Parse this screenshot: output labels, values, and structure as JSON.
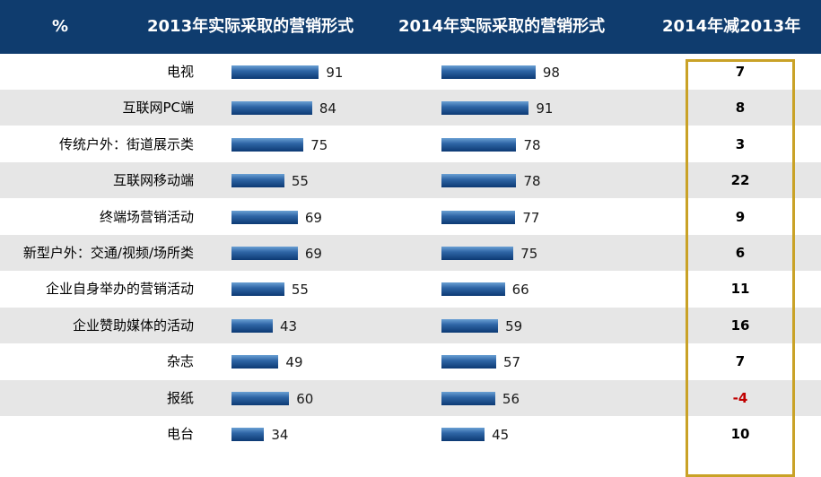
{
  "header": {
    "unit": "%",
    "col_2013": "2013年实际采取的营销形式",
    "col_2014": "2014年实际采取的营销形式",
    "col_diff": "2014年减2013年"
  },
  "colors": {
    "header_bg": "#0f3c6e",
    "bar": "#1f5596",
    "negative": "#c00000",
    "highlight_border": "#c9a227"
  },
  "chart_data": {
    "type": "bar",
    "categories": [
      "电视",
      "互联网PC端",
      "传统户外：街道展示类",
      "互联网移动端",
      "终端场营销活动",
      "新型户外：交通/视频/场所类",
      "企业自身举办的营销活动",
      "企业赞助媒体的活动",
      "杂志",
      "报纸",
      "电台"
    ],
    "series": [
      {
        "name": "2013年实际采取的营销形式",
        "values": [
          91,
          84,
          75,
          55,
          69,
          69,
          55,
          43,
          49,
          60,
          34
        ]
      },
      {
        "name": "2014年实际采取的营销形式",
        "values": [
          98,
          91,
          78,
          78,
          77,
          75,
          66,
          59,
          57,
          56,
          45
        ]
      }
    ],
    "diff": {
      "name": "2014年减2013年",
      "values": [
        "7",
        "8",
        "3",
        "22",
        "9",
        "6",
        "11",
        "16",
        "7",
        "-4",
        "10"
      ]
    }
  }
}
